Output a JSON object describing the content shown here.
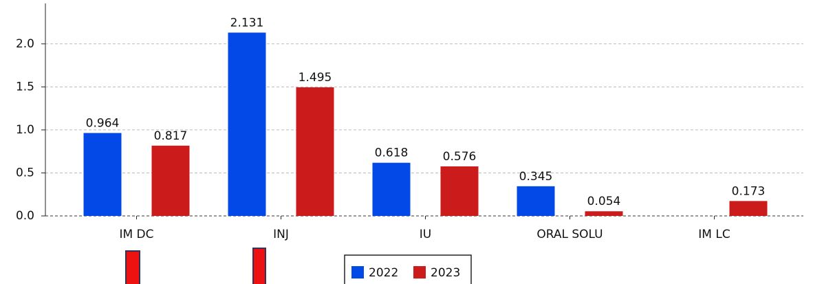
{
  "chart_data": {
    "type": "bar",
    "categories": [
      "IM DC",
      "INJ",
      "IU",
      "ORAL SOLU",
      "IM LC"
    ],
    "series": [
      {
        "name": "2022",
        "color": "#0249e8",
        "values": [
          0.964,
          2.131,
          0.618,
          0.345,
          null
        ]
      },
      {
        "name": "2023",
        "color": "#cc1b1b",
        "values": [
          0.817,
          1.495,
          0.576,
          0.054,
          0.173
        ]
      }
    ],
    "ylim": [
      0,
      2.47
    ],
    "yticks": [
      {
        "value": 0,
        "label": "0.0"
      },
      0.5,
      {
        "value": 1,
        "label": "1.0"
      },
      1.5,
      {
        "value": 2,
        "label": "2.0"
      }
    ],
    "grid": true,
    "legend": "bottom"
  }
}
